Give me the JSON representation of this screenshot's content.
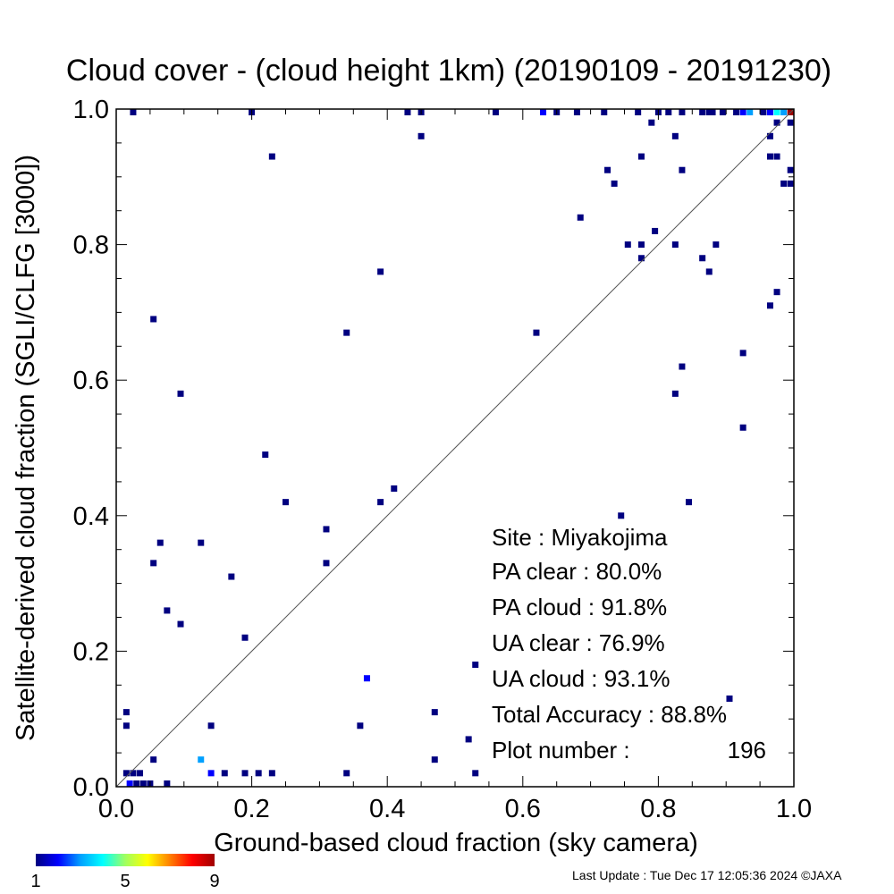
{
  "chart_data": {
    "type": "scatter",
    "title": "Cloud cover - (cloud height 1km)  (20190109 - 20191230)",
    "xlabel": "Ground-based cloud fraction (sky camera)",
    "ylabel": "Satellite-derived cloud fraction (SGLI/CLFG [3000])",
    "xlim": [
      0.0,
      1.0
    ],
    "ylim": [
      0.0,
      1.0
    ],
    "x_ticks": [
      "0.0",
      "0.2",
      "0.4",
      "0.6",
      "0.8",
      "1.0"
    ],
    "y_ticks": [
      "0.0",
      "0.2",
      "0.4",
      "0.6",
      "0.8",
      "1.0"
    ],
    "diagonal_line": true,
    "grid": false,
    "colorbar": {
      "min": 1,
      "max": 9,
      "tick_labels": [
        "1",
        "5",
        "9"
      ],
      "colors": [
        "#000080",
        "#0000ff",
        "#00a0ff",
        "#00ffff",
        "#a0ff60",
        "#ffff00",
        "#ff8000",
        "#ff0000",
        "#a00000"
      ]
    },
    "stats": {
      "site": "Site : Miyakojima",
      "pa_clear": "PA clear :  80.0%",
      "pa_cloud": "PA cloud :  91.8%",
      "ua_clear": "UA clear :  76.9%",
      "ua_cloud": "UA cloud :  93.1%",
      "total_accuracy": "Total Accuracy :  88.8%",
      "plot_number_label": "Plot number :",
      "plot_number_value": "196"
    },
    "points": [
      {
        "x": 0.025,
        "y": 1.0,
        "c": 1
      },
      {
        "x": 0.2,
        "y": 1.0,
        "c": 1
      },
      {
        "x": 0.43,
        "y": 1.0,
        "c": 1
      },
      {
        "x": 0.45,
        "y": 1.0,
        "c": 1
      },
      {
        "x": 0.56,
        "y": 1.0,
        "c": 1
      },
      {
        "x": 0.63,
        "y": 1.0,
        "c": 2
      },
      {
        "x": 0.65,
        "y": 1.0,
        "c": 1
      },
      {
        "x": 0.68,
        "y": 1.0,
        "c": 1
      },
      {
        "x": 0.72,
        "y": 1.0,
        "c": 1
      },
      {
        "x": 0.77,
        "y": 1.0,
        "c": 1
      },
      {
        "x": 0.8,
        "y": 1.0,
        "c": 1
      },
      {
        "x": 0.815,
        "y": 1.0,
        "c": 1
      },
      {
        "x": 0.835,
        "y": 1.0,
        "c": 1
      },
      {
        "x": 0.865,
        "y": 1.0,
        "c": 1
      },
      {
        "x": 0.875,
        "y": 1.0,
        "c": 1
      },
      {
        "x": 0.88,
        "y": 1.0,
        "c": 1
      },
      {
        "x": 0.895,
        "y": 1.0,
        "c": 1
      },
      {
        "x": 0.915,
        "y": 1.0,
        "c": 1
      },
      {
        "x": 0.925,
        "y": 1.0,
        "c": 2
      },
      {
        "x": 0.935,
        "y": 1.0,
        "c": 3
      },
      {
        "x": 0.955,
        "y": 1.0,
        "c": 1
      },
      {
        "x": 0.965,
        "y": 1.0,
        "c": 2
      },
      {
        "x": 0.975,
        "y": 1.0,
        "c": 4
      },
      {
        "x": 0.985,
        "y": 1.0,
        "c": 3
      },
      {
        "x": 0.995,
        "y": 1.0,
        "c": 9
      },
      {
        "x": 0.45,
        "y": 0.96,
        "c": 1
      },
      {
        "x": 0.79,
        "y": 0.98,
        "c": 1
      },
      {
        "x": 0.825,
        "y": 0.96,
        "c": 1
      },
      {
        "x": 0.965,
        "y": 0.96,
        "c": 1
      },
      {
        "x": 0.975,
        "y": 0.98,
        "c": 1
      },
      {
        "x": 0.995,
        "y": 0.98,
        "c": 1
      },
      {
        "x": 0.23,
        "y": 0.93,
        "c": 1
      },
      {
        "x": 0.725,
        "y": 0.91,
        "c": 1
      },
      {
        "x": 0.735,
        "y": 0.89,
        "c": 1
      },
      {
        "x": 0.775,
        "y": 0.93,
        "c": 1
      },
      {
        "x": 0.835,
        "y": 0.91,
        "c": 1
      },
      {
        "x": 0.965,
        "y": 0.93,
        "c": 1
      },
      {
        "x": 0.975,
        "y": 0.93,
        "c": 1
      },
      {
        "x": 0.985,
        "y": 0.89,
        "c": 1
      },
      {
        "x": 0.995,
        "y": 0.89,
        "c": 1
      },
      {
        "x": 0.995,
        "y": 0.91,
        "c": 1
      },
      {
        "x": 0.685,
        "y": 0.84,
        "c": 1
      },
      {
        "x": 0.755,
        "y": 0.8,
        "c": 1
      },
      {
        "x": 0.775,
        "y": 0.8,
        "c": 1
      },
      {
        "x": 0.775,
        "y": 0.78,
        "c": 1
      },
      {
        "x": 0.795,
        "y": 0.82,
        "c": 1
      },
      {
        "x": 0.825,
        "y": 0.8,
        "c": 1
      },
      {
        "x": 0.865,
        "y": 0.78,
        "c": 1
      },
      {
        "x": 0.875,
        "y": 0.76,
        "c": 1
      },
      {
        "x": 0.885,
        "y": 0.8,
        "c": 1
      },
      {
        "x": 0.39,
        "y": 0.76,
        "c": 1
      },
      {
        "x": 0.965,
        "y": 0.71,
        "c": 1
      },
      {
        "x": 0.975,
        "y": 0.73,
        "c": 1
      },
      {
        "x": 0.055,
        "y": 0.69,
        "c": 1
      },
      {
        "x": 0.34,
        "y": 0.67,
        "c": 1
      },
      {
        "x": 0.62,
        "y": 0.67,
        "c": 1
      },
      {
        "x": 0.925,
        "y": 0.64,
        "c": 1
      },
      {
        "x": 0.835,
        "y": 0.62,
        "c": 1
      },
      {
        "x": 0.095,
        "y": 0.58,
        "c": 1
      },
      {
        "x": 0.825,
        "y": 0.58,
        "c": 1
      },
      {
        "x": 0.925,
        "y": 0.53,
        "c": 1
      },
      {
        "x": 0.22,
        "y": 0.49,
        "c": 1
      },
      {
        "x": 0.41,
        "y": 0.44,
        "c": 1
      },
      {
        "x": 0.25,
        "y": 0.42,
        "c": 1
      },
      {
        "x": 0.39,
        "y": 0.42,
        "c": 1
      },
      {
        "x": 0.845,
        "y": 0.42,
        "c": 1
      },
      {
        "x": 0.745,
        "y": 0.4,
        "c": 1
      },
      {
        "x": 0.31,
        "y": 0.38,
        "c": 1
      },
      {
        "x": 0.065,
        "y": 0.36,
        "c": 1
      },
      {
        "x": 0.125,
        "y": 0.36,
        "c": 1
      },
      {
        "x": 0.055,
        "y": 0.33,
        "c": 1
      },
      {
        "x": 0.31,
        "y": 0.33,
        "c": 1
      },
      {
        "x": 0.17,
        "y": 0.31,
        "c": 1
      },
      {
        "x": 0.075,
        "y": 0.26,
        "c": 1
      },
      {
        "x": 0.095,
        "y": 0.24,
        "c": 1
      },
      {
        "x": 0.19,
        "y": 0.22,
        "c": 1
      },
      {
        "x": 0.53,
        "y": 0.18,
        "c": 1
      },
      {
        "x": 0.37,
        "y": 0.16,
        "c": 2
      },
      {
        "x": 0.905,
        "y": 0.13,
        "c": 1
      },
      {
        "x": 0.015,
        "y": 0.11,
        "c": 1
      },
      {
        "x": 0.47,
        "y": 0.11,
        "c": 1
      },
      {
        "x": 0.015,
        "y": 0.09,
        "c": 1
      },
      {
        "x": 0.14,
        "y": 0.09,
        "c": 1
      },
      {
        "x": 0.36,
        "y": 0.09,
        "c": 1
      },
      {
        "x": 0.52,
        "y": 0.07,
        "c": 1
      },
      {
        "x": 0.055,
        "y": 0.04,
        "c": 1
      },
      {
        "x": 0.125,
        "y": 0.04,
        "c": 3
      },
      {
        "x": 0.47,
        "y": 0.04,
        "c": 1
      },
      {
        "x": 0.015,
        "y": 0.02,
        "c": 1
      },
      {
        "x": 0.025,
        "y": 0.02,
        "c": 1
      },
      {
        "x": 0.035,
        "y": 0.02,
        "c": 1
      },
      {
        "x": 0.14,
        "y": 0.02,
        "c": 2
      },
      {
        "x": 0.16,
        "y": 0.02,
        "c": 1
      },
      {
        "x": 0.19,
        "y": 0.02,
        "c": 1
      },
      {
        "x": 0.21,
        "y": 0.02,
        "c": 1
      },
      {
        "x": 0.23,
        "y": 0.02,
        "c": 1
      },
      {
        "x": 0.34,
        "y": 0.02,
        "c": 1
      },
      {
        "x": 0.53,
        "y": 0.02,
        "c": 1
      },
      {
        "x": 0.02,
        "y": 0.0,
        "c": 2
      },
      {
        "x": 0.03,
        "y": 0.0,
        "c": 1
      },
      {
        "x": 0.04,
        "y": 0.0,
        "c": 1
      },
      {
        "x": 0.05,
        "y": 0.0,
        "c": 1
      },
      {
        "x": 0.075,
        "y": 0.0,
        "c": 1
      }
    ]
  },
  "footer": {
    "last_update": "Last Update : Tue Dec 17 12:05:36 2024  ©JAXA"
  }
}
